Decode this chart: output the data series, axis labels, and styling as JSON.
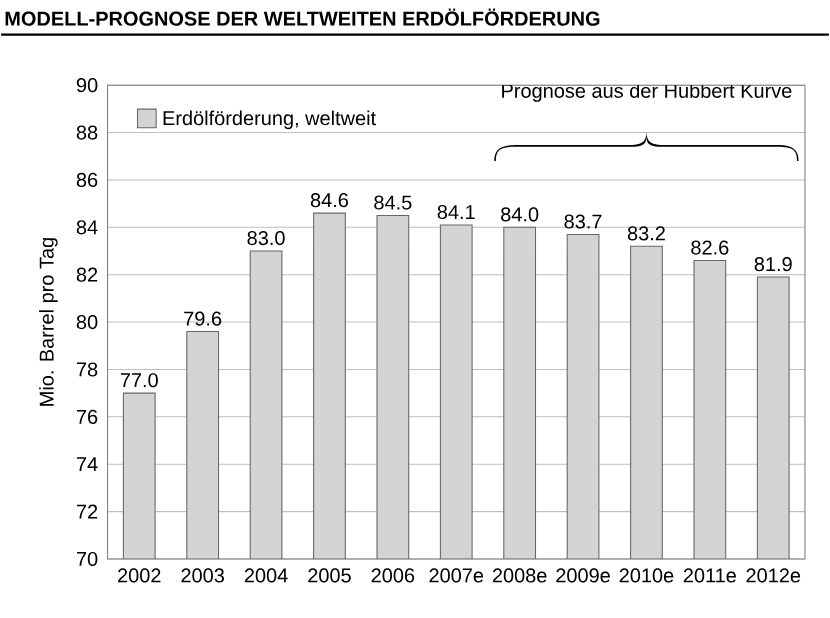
{
  "chart_data": {
    "type": "bar",
    "title": "MODELL-PROGNOSE DER WELTWEITEN ERDÖLFÖRDERUNG",
    "ylabel": "Mio. Barrel pro Tag",
    "categories": [
      "2002",
      "2003",
      "2004",
      "2005",
      "2006",
      "2007e",
      "2008e",
      "2009e",
      "2010e",
      "2011e",
      "2012e"
    ],
    "series": [
      {
        "name": "Erdölförderung, weltweit",
        "color": "#d4d4d4",
        "values": [
          77.0,
          79.6,
          83.0,
          84.6,
          84.5,
          84.1,
          84.0,
          83.7,
          83.2,
          82.6,
          81.9
        ],
        "value_labels": [
          "77.0",
          "79.6",
          "83.0",
          "84.6",
          "84.5",
          "84.1",
          "84.0",
          "83.7",
          "83.2",
          "82.6",
          "81.9"
        ]
      }
    ],
    "ylim": [
      70,
      90
    ],
    "yticks": [
      70,
      72,
      74,
      76,
      78,
      80,
      82,
      84,
      86,
      88,
      90
    ],
    "grid": "y",
    "legend": "top left",
    "annotations": [
      "Prognose aus der Hubbert Kurve"
    ]
  }
}
